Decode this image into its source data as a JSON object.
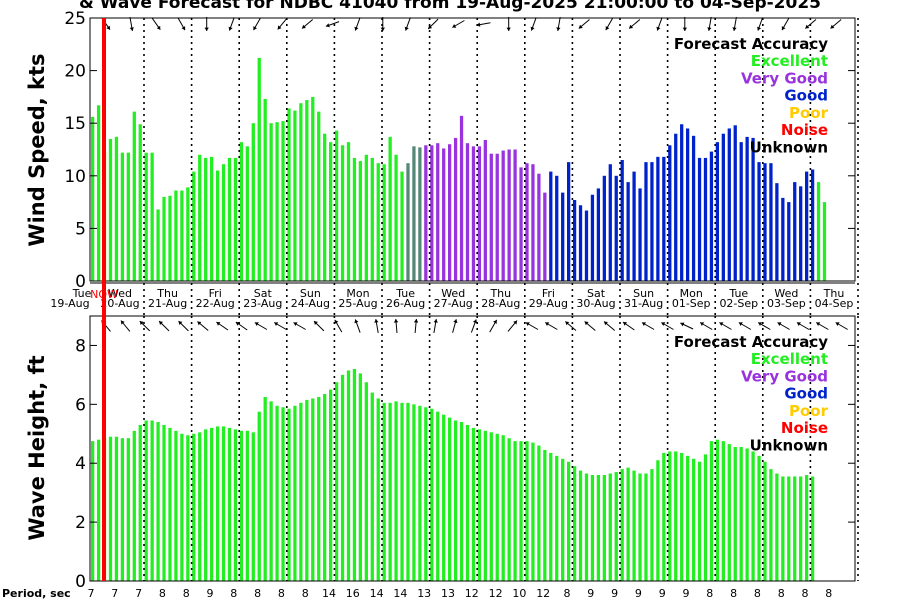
{
  "title": "& Wave Forecast for NDBC 41040 from 19-Aug-2025 21:00:00 to 04-Sep-2025",
  "now_label": "NOW",
  "period_label": "Period, sec",
  "colors": {
    "excellent": "#22ee22",
    "very_good": "#9933dd",
    "good": "#0022cc",
    "poor": "#ffcc00",
    "noise": "#ff0000",
    "unknown": "#000000",
    "transition": "#558877",
    "now_line": "#ff0000"
  },
  "legend": {
    "title": "Forecast Accuracy",
    "entries": [
      {
        "label": "Excellent",
        "key": "excellent"
      },
      {
        "label": "Very Good",
        "key": "very_good"
      },
      {
        "label": "Good",
        "key": "good"
      },
      {
        "label": "Poor",
        "key": "poor"
      },
      {
        "label": "Noise",
        "key": "noise"
      },
      {
        "label": "Unknown",
        "key": "unknown"
      }
    ]
  },
  "days": [
    {
      "dow": "Tue",
      "date": "19-Aug"
    },
    {
      "dow": "Wed",
      "date": "20-Aug"
    },
    {
      "dow": "Thu",
      "date": "21-Aug"
    },
    {
      "dow": "Fri",
      "date": "22-Aug"
    },
    {
      "dow": "Sat",
      "date": "23-Aug"
    },
    {
      "dow": "Sun",
      "date": "24-Aug"
    },
    {
      "dow": "Mon",
      "date": "25-Aug"
    },
    {
      "dow": "Tue",
      "date": "26-Aug"
    },
    {
      "dow": "Wed",
      "date": "27-Aug"
    },
    {
      "dow": "Thu",
      "date": "28-Aug"
    },
    {
      "dow": "Fri",
      "date": "29-Aug"
    },
    {
      "dow": "Sat",
      "date": "30-Aug"
    },
    {
      "dow": "Sun",
      "date": "31-Aug"
    },
    {
      "dow": "Mon",
      "date": "01-Sep"
    },
    {
      "dow": "Tue",
      "date": "02-Sep"
    },
    {
      "dow": "Wed",
      "date": "03-Sep"
    },
    {
      "dow": "Thu",
      "date": "04-Sep"
    }
  ],
  "periods": [
    "7",
    "7",
    "7",
    "8",
    "8",
    "9",
    "8",
    "8",
    "8",
    "8",
    "14",
    "16",
    "14",
    "14",
    "13",
    "13",
    "12",
    "12",
    "10",
    "12",
    "8",
    "9",
    "9",
    "9",
    "9",
    "9",
    "8",
    "8",
    "8",
    "8",
    "8",
    "8"
  ],
  "chart_data": [
    {
      "type": "bar",
      "title": "Wind Speed",
      "ylabel": "Wind Speed, kts",
      "ylim": [
        0,
        25
      ],
      "yticks": [
        0,
        5,
        10,
        15,
        20,
        25
      ],
      "x_start": "19-Aug-2025 21:00",
      "x_end": "04-Sep-2025",
      "step_hours": 3,
      "color_segments": [
        {
          "from": 0,
          "to": 53,
          "accuracy": "excellent"
        },
        {
          "from": 53,
          "to": 56,
          "accuracy": "transition"
        },
        {
          "from": 56,
          "to": 77,
          "accuracy": "very_good"
        },
        {
          "from": 77,
          "to": 122,
          "accuracy": "good"
        }
      ],
      "values": [
        15.6,
        16.7,
        12.3,
        13.5,
        13.7,
        12.2,
        12.2,
        16.1,
        14.9,
        12.2,
        12.2,
        6.8,
        8.0,
        8.1,
        8.6,
        8.6,
        8.9,
        10.4,
        12.0,
        11.7,
        11.8,
        10.5,
        11.1,
        11.7,
        11.7,
        13.2,
        12.8,
        15.0,
        21.2,
        17.3,
        15.0,
        15.1,
        15.2,
        16.4,
        16.2,
        16.9,
        17.2,
        17.5,
        16.1,
        14.0,
        13.2,
        14.3,
        12.9,
        13.2,
        11.7,
        11.4,
        12.0,
        11.7,
        11.2,
        11.1,
        13.7,
        12.0,
        10.4,
        11.2,
        12.8,
        12.7,
        12.9,
        12.9,
        13.1,
        12.6,
        13.0,
        13.6,
        15.7,
        13.1,
        12.8,
        12.8,
        13.4,
        12.1,
        12.1,
        12.4,
        12.5,
        12.5,
        10.8,
        11.2,
        11.1,
        10.2,
        8.4,
        10.4,
        10.0,
        8.4,
        11.3,
        7.7,
        7.2,
        6.7,
        8.2,
        8.8,
        10.0,
        11.1,
        10.0,
        11.5,
        9.4,
        10.4,
        8.8,
        11.3,
        11.3,
        11.8,
        11.8,
        12.9,
        14.0,
        14.9,
        14.5,
        13.8,
        11.7,
        11.7,
        12.3,
        13.2,
        14.0,
        14.5,
        14.8,
        13.2,
        13.7,
        13.6,
        11.3,
        11.2,
        11.2,
        9.3,
        7.9,
        7.5,
        9.4,
        9.0,
        10.4,
        10.6,
        9.4,
        7.5
      ]
    },
    {
      "type": "bar",
      "title": "Wave Height",
      "ylabel": "Wave Height, ft",
      "ylim": [
        0,
        9
      ],
      "yticks": [
        0,
        2,
        4,
        6,
        8
      ],
      "x_start": "19-Aug-2025 21:00",
      "x_end": "04-Sep-2025",
      "step_hours": 3,
      "color_segments": [
        {
          "from": 0,
          "to": 122,
          "accuracy": "excellent"
        }
      ],
      "values": [
        4.75,
        4.8,
        4.85,
        4.9,
        4.9,
        4.85,
        4.85,
        5.1,
        5.3,
        5.45,
        5.45,
        5.4,
        5.3,
        5.2,
        5.1,
        5.0,
        4.95,
        5.0,
        5.05,
        5.15,
        5.2,
        5.25,
        5.25,
        5.2,
        5.15,
        5.1,
        5.1,
        5.05,
        5.75,
        6.25,
        6.1,
        5.95,
        5.9,
        5.85,
        5.95,
        6.05,
        6.15,
        6.2,
        6.25,
        6.35,
        6.5,
        6.75,
        7.0,
        7.15,
        7.2,
        7.05,
        6.75,
        6.4,
        6.2,
        6.05,
        6.05,
        6.1,
        6.05,
        6.05,
        6.0,
        5.95,
        5.9,
        5.85,
        5.75,
        5.65,
        5.55,
        5.45,
        5.4,
        5.3,
        5.2,
        5.15,
        5.1,
        5.05,
        5.0,
        4.95,
        4.85,
        4.75,
        4.75,
        4.75,
        4.7,
        4.6,
        4.45,
        4.35,
        4.25,
        4.15,
        4.05,
        3.9,
        3.75,
        3.65,
        3.6,
        3.6,
        3.6,
        3.65,
        3.7,
        3.8,
        3.85,
        3.75,
        3.65,
        3.65,
        3.8,
        4.1,
        4.35,
        4.4,
        4.4,
        4.35,
        4.25,
        4.15,
        4.05,
        4.3,
        4.75,
        4.8,
        4.75,
        4.65,
        4.55,
        4.55,
        4.5,
        4.4,
        4.25,
        4.05,
        3.8,
        3.65,
        3.55,
        3.55,
        3.55,
        3.55,
        3.6,
        3.55
      ]
    }
  ],
  "arrow_dirs": {
    "wind": [
      145,
      170,
      145,
      150,
      180,
      200,
      210,
      220,
      230,
      250,
      200,
      180,
      200,
      225,
      240,
      260,
      180,
      200,
      190,
      230,
      210,
      230,
      200,
      180,
      190,
      190,
      200,
      210,
      230,
      230
    ],
    "wave": [
      320,
      320,
      315,
      315,
      315,
      310,
      305,
      305,
      300,
      300,
      300,
      315,
      330,
      340,
      350,
      355,
      5,
      10,
      15,
      20,
      30,
      40,
      300,
      300,
      310,
      310,
      310,
      305,
      300,
      300,
      295,
      300,
      300,
      300,
      300,
      300,
      300,
      300,
      300
    ]
  }
}
